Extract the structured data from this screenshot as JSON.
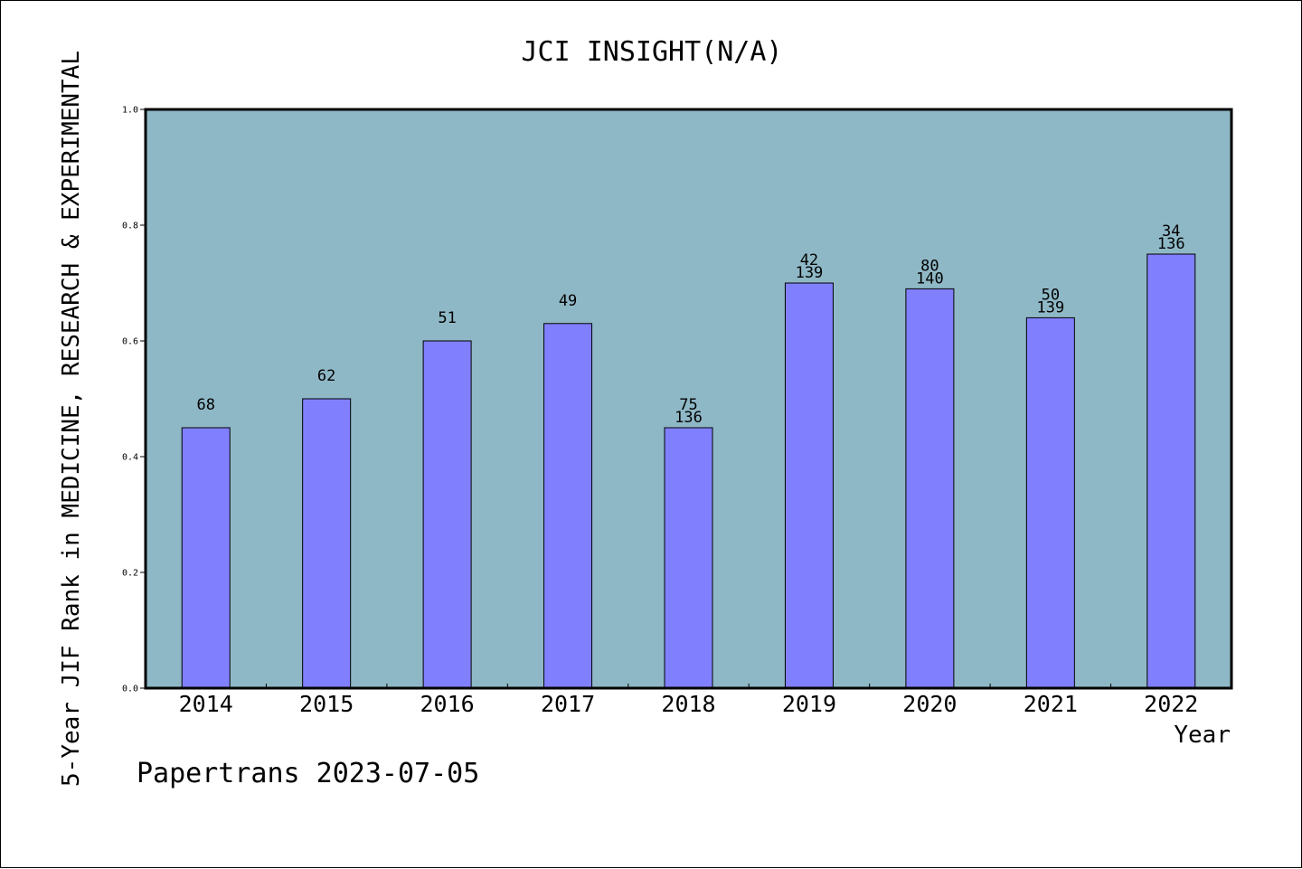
{
  "chart_data": {
    "type": "bar",
    "title": "JCI INSIGHT(N/A)",
    "xlabel": "Year",
    "ylabel": "5-Year JIF Rank in MEDICINE, RESEARCH & EXPERIMENTAL",
    "ylim": [
      0,
      1.0
    ],
    "yticks": [
      "0.0",
      "0.2",
      "0.4",
      "0.6",
      "0.8",
      "1.0"
    ],
    "categories": [
      "2014",
      "2015",
      "2016",
      "2017",
      "2018",
      "2019",
      "2020",
      "2021",
      "2022"
    ],
    "values": [
      0.45,
      0.5,
      0.6,
      0.63,
      0.45,
      0.7,
      0.69,
      0.64,
      0.75
    ],
    "labels_top": [
      "68",
      "62",
      "51",
      "49",
      "75",
      "42",
      "80",
      "50",
      "34"
    ],
    "labels_bottom": [
      "",
      "",
      "",
      "",
      "136",
      "139",
      "140",
      "139",
      "136"
    ],
    "grid": false,
    "colors": {
      "plot_background": "#8fb8c6",
      "bar_fill": "#8080ff",
      "bar_stroke": "#000000"
    }
  },
  "footer": "Papertrans 2023-07-05"
}
